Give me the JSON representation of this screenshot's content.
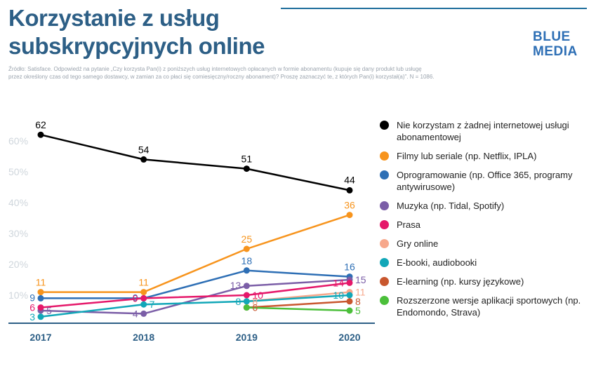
{
  "header": {
    "title_line1": "Korzystanie z usług",
    "title_line2": "subskrypcyjnych online",
    "logo_line1": "BLUE",
    "logo_line2": "MEDIA",
    "source_line1": "Źródło: Satisface. Odpowiedź na pytanie „Czy korzysta Pan(i) z poniższych usług internetowych opłacanych w formie abonamentu (kupuje się dany produkt lub usługę",
    "source_line2": "przez określony czas od tego samego dostawcy, w zamian za co płaci się comiesięczny/roczny abonament)? Proszę zaznaczyć te, z których Pan(i) korzystał(a)”. N = 1086."
  },
  "colors": {
    "title": "#2d5f86",
    "logo": "#2e6fb5",
    "grid_label": "#cfd6dc",
    "axis": "#2d5f86"
  },
  "chart_data": {
    "type": "line",
    "x": [
      "2017",
      "2018",
      "2019",
      "2020"
    ],
    "ylim": [
      0,
      70
    ],
    "yticks": [
      10,
      20,
      30,
      40,
      50,
      60
    ],
    "ytick_labels": [
      "10%",
      "20%",
      "30%",
      "40%",
      "50%",
      "60%"
    ],
    "grid": false,
    "legend_position": "right",
    "series": [
      {
        "name": "Nie korzystam z żadnej internetowej usługi abonamentowej",
        "color": "#000000",
        "values": [
          62,
          54,
          51,
          44
        ]
      },
      {
        "name": "Filmy lub seriale (np. Netflix, IPLA)",
        "color": "#f7941d",
        "values": [
          11,
          11,
          25,
          36
        ]
      },
      {
        "name": "Oprogramowanie (np. Office 365, programy antywirusowe)",
        "color": "#2e6fb5",
        "values": [
          9,
          9,
          18,
          16
        ]
      },
      {
        "name": "Muzyka (np. Tidal, Spotify)",
        "color": "#7b5ea7",
        "values": [
          5,
          4,
          13,
          15
        ]
      },
      {
        "name": "Prasa",
        "color": "#e5186a",
        "values": [
          6,
          9,
          10,
          14
        ]
      },
      {
        "name": "Gry online",
        "color": "#f7a88c",
        "values": [
          null,
          null,
          8,
          11
        ]
      },
      {
        "name": "E-booki, audiobooki",
        "color": "#12a7b8",
        "values": [
          3,
          7,
          8,
          10
        ]
      },
      {
        "name": "E-learning (np. kursy językowe)",
        "color": "#c8572e",
        "values": [
          null,
          null,
          6,
          8
        ]
      },
      {
        "name": "Rozszerzone wersje aplikacji sportowych (np. Endomondo, Strava)",
        "color": "#4bbf3a",
        "values": [
          null,
          null,
          6,
          5
        ]
      }
    ]
  }
}
